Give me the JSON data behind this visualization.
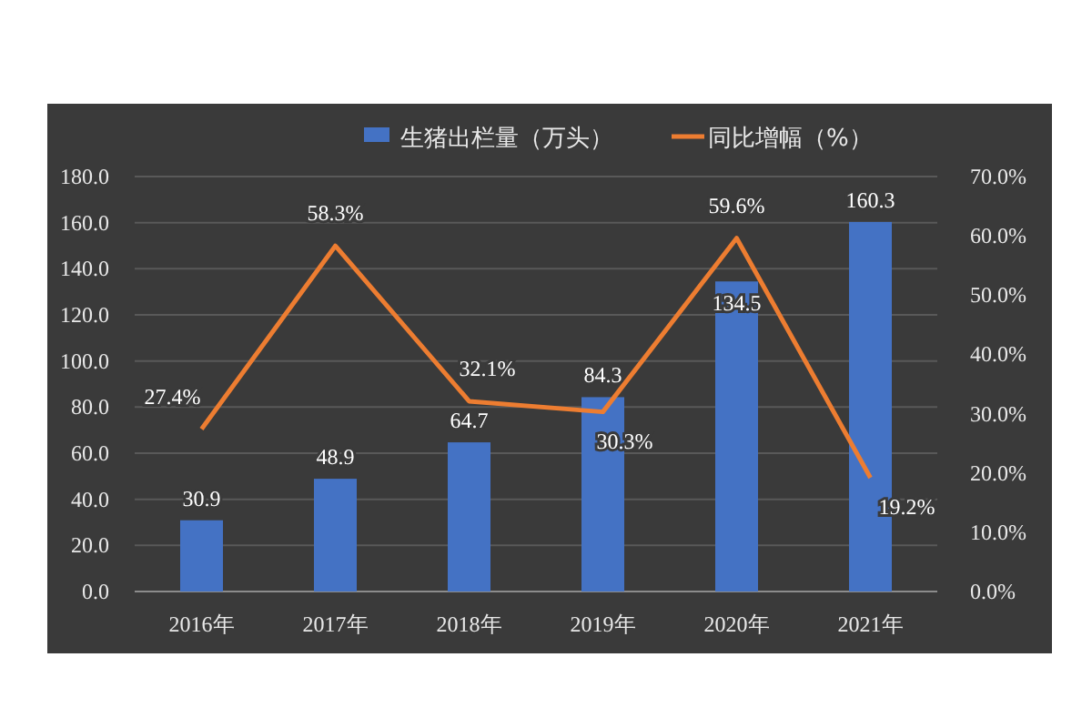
{
  "chart_data": {
    "type": "bar",
    "categories": [
      "2016年",
      "2017年",
      "2018年",
      "2019年",
      "2020年",
      "2021年"
    ],
    "series": [
      {
        "name": "生猪出栏量（万头）",
        "color": "#4472c4",
        "values": [
          30.9,
          48.9,
          64.7,
          84.3,
          134.5,
          160.3
        ],
        "value_labels": [
          "30.9",
          "48.9",
          "64.7",
          "84.3",
          "134.5",
          "160.3"
        ]
      },
      {
        "name": "同比增幅（%）",
        "type": "line",
        "axis": "y2",
        "color": "#ed7d31",
        "values": [
          27.4,
          58.3,
          32.1,
          30.3,
          59.6,
          19.2
        ],
        "value_labels": [
          "27.4%",
          "58.3%",
          "32.1%",
          "30.3%",
          "59.6%",
          "19.2%"
        ]
      }
    ],
    "ylim": [
      0,
      180
    ],
    "yticks": [
      {
        "value": 0,
        "label": "0.0"
      },
      {
        "value": 20,
        "label": "20.0"
      },
      {
        "value": 40,
        "label": "40.0"
      },
      {
        "value": 60,
        "label": "60.0"
      },
      {
        "value": 80,
        "label": "80.0"
      },
      {
        "value": 100,
        "label": "100.0"
      },
      {
        "value": 120,
        "label": "120.0"
      },
      {
        "value": 140,
        "label": "140.0"
      },
      {
        "value": 160,
        "label": "160.0"
      },
      {
        "value": 180,
        "label": "180.0"
      }
    ],
    "y2lim": [
      0,
      70
    ],
    "y2ticks": [
      {
        "value": 0,
        "label": "0.0%"
      },
      {
        "value": 10,
        "label": "10.0%"
      },
      {
        "value": 20,
        "label": "20.0%"
      },
      {
        "value": 30,
        "label": "30.0%"
      },
      {
        "value": 40,
        "label": "40.0%"
      },
      {
        "value": 50,
        "label": "50.0%"
      },
      {
        "value": 60,
        "label": "60.0%"
      },
      {
        "value": 70,
        "label": "70.0%"
      }
    ],
    "grid": "y",
    "legend": "top",
    "marker": "none",
    "line_style": "solid"
  }
}
